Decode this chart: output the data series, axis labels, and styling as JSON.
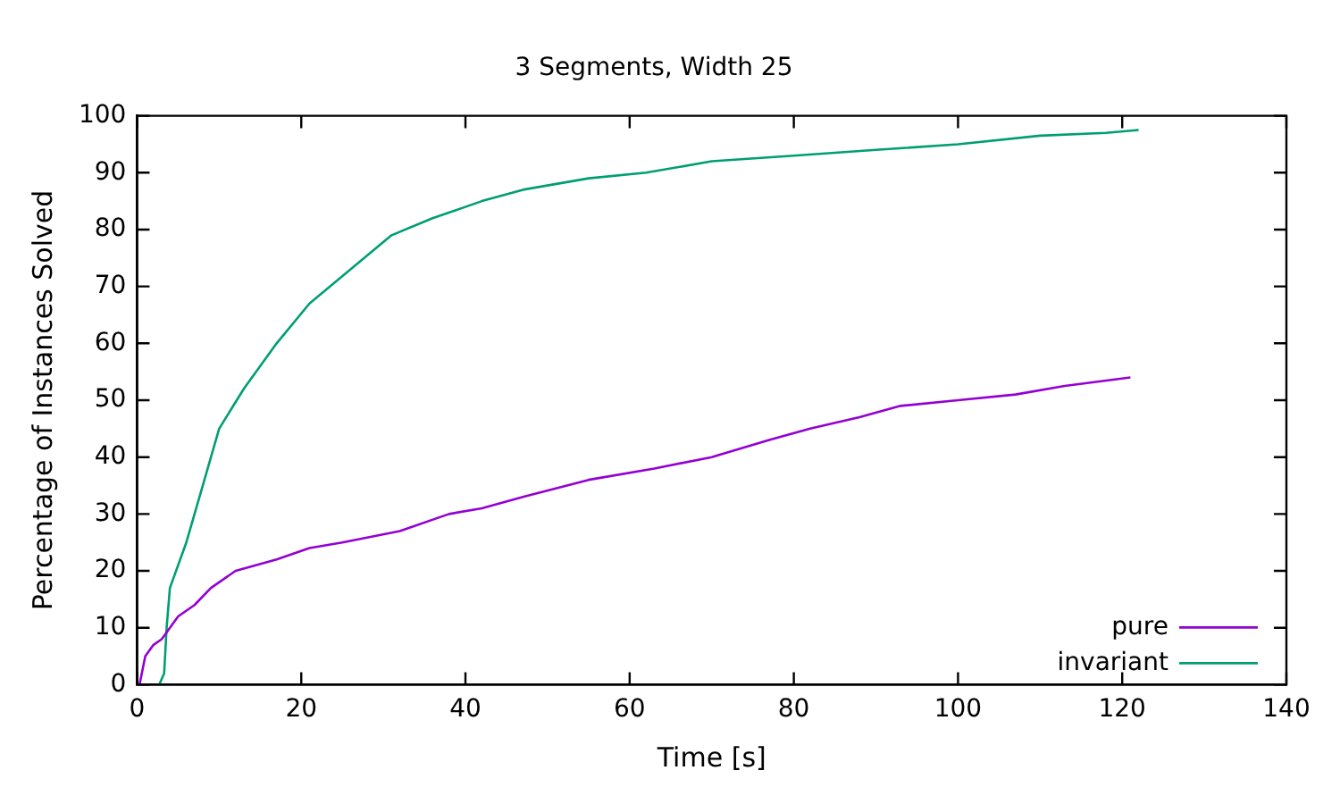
{
  "chart_data": {
    "type": "line",
    "title": "3 Segments, Width 25",
    "xlabel": "Time [s]",
    "ylabel": "Percentage of Instances Solved",
    "xlim": [
      0,
      140
    ],
    "xticks": [
      0,
      20,
      40,
      60,
      80,
      100,
      120,
      140
    ],
    "ylim": [
      0,
      100
    ],
    "yticks": [
      0,
      10,
      20,
      30,
      40,
      50,
      60,
      70,
      80,
      90,
      100
    ],
    "grid": false,
    "legend": "bottom right",
    "marker": "none",
    "line_style": "solid",
    "series": [
      {
        "name": "pure",
        "color": "#9400d3",
        "x": [
          0.3,
          1,
          2,
          3,
          4,
          5,
          7,
          9,
          12,
          17,
          21,
          25,
          32,
          38,
          42,
          47,
          55,
          63,
          70,
          77,
          82,
          88,
          93,
          100,
          107,
          113,
          121
        ],
        "values": [
          0,
          5,
          7,
          8,
          10,
          12,
          14,
          17,
          20,
          22,
          24,
          25,
          27,
          30,
          31,
          33,
          36,
          38,
          40,
          43,
          45,
          47,
          49,
          50,
          51,
          52.5,
          54
        ]
      },
      {
        "name": "invariant",
        "color": "#009e73",
        "x": [
          2.7,
          3.3,
          3.6,
          4,
          6,
          8,
          10,
          13,
          17,
          21,
          26,
          31,
          36,
          42,
          47,
          55,
          62,
          70,
          80,
          90,
          100,
          110,
          118,
          122
        ],
        "values": [
          0,
          2,
          10,
          17,
          25,
          35,
          45,
          52,
          60,
          67,
          73,
          79,
          82,
          85,
          87,
          89,
          90,
          92,
          93,
          94,
          95,
          96.5,
          97,
          97.5
        ]
      }
    ]
  }
}
